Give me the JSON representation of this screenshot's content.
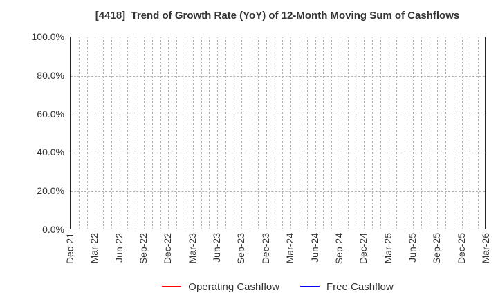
{
  "chart_data": {
    "type": "line",
    "title": "[4418]  Trend of Growth Rate (YoY) of 12-Month Moving Sum of Cashflows",
    "x_axis": {
      "tick_labels": [
        "Dec-21",
        "Mar-22",
        "Jun-22",
        "Sep-22",
        "Dec-22",
        "Mar-23",
        "Jun-23",
        "Sep-23",
        "Dec-23",
        "Mar-24",
        "Jun-24",
        "Sep-24",
        "Dec-24",
        "Mar-25",
        "Jun-25",
        "Sep-25",
        "Dec-25",
        "Mar-26"
      ],
      "tick_interval_months": 3,
      "range": [
        "Dec-21",
        "Mar-26"
      ],
      "months_span": 51,
      "minor_grid": "monthly"
    },
    "y_axis": {
      "ticks": [
        0,
        20,
        40,
        60,
        80,
        100
      ],
      "tick_labels": [
        "0.0%",
        "20.0%",
        "40.0%",
        "60.0%",
        "80.0%",
        "100.0%"
      ],
      "ylim": [
        0,
        100
      ],
      "unit": "%"
    },
    "series": [
      {
        "name": "Operating Cashflow",
        "color": "#ff0000",
        "values": []
      },
      {
        "name": "Free Cashflow",
        "color": "#0000ff",
        "values": []
      }
    ],
    "note": "No data lines are plotted; the chart area is empty.",
    "grid": {
      "on": true,
      "vertical_style": "dotted",
      "horizontal_style": "dashed",
      "color": "#b3b3b3"
    },
    "legend_position": "bottom-center"
  },
  "colors": {
    "background": "#ffffff",
    "border": "#262626",
    "grid": "#b3b3b3",
    "text": "#333333",
    "operating_cashflow": "#ff0000",
    "free_cashflow": "#0000ff"
  }
}
